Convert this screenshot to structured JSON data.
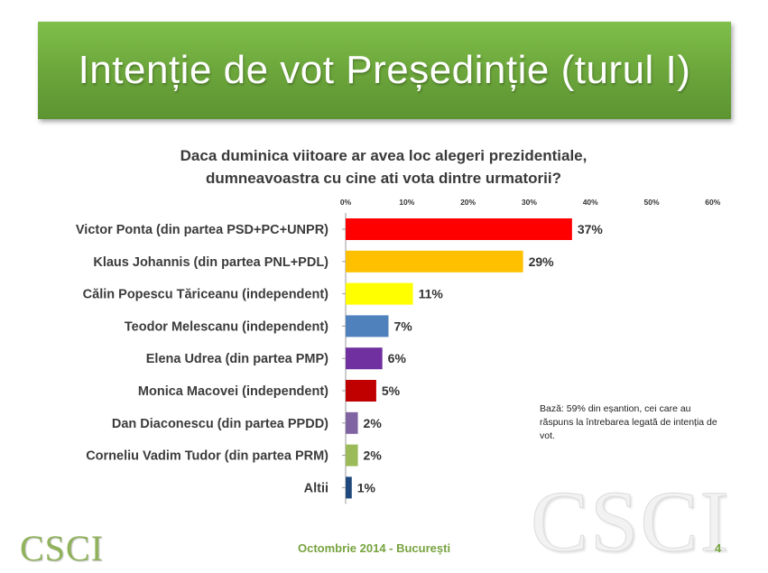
{
  "slide": {
    "title": "Intenție de vot Președinție (turul I)",
    "question_line1": "Daca duminica viitoare ar avea loc alegeri prezidentiale,",
    "question_line2": "dumneavoastra cu cine ati vota dintre urmatorii?",
    "note": "Bază: 59% din eșantion, cei care au răspuns la întrebarea legată de intenția de vot.",
    "watermark": "CSCI",
    "logo": "CSCI",
    "footer": "Octombrie 2014 - București",
    "page_number": "4"
  },
  "chart_data": {
    "type": "bar",
    "orientation": "horizontal",
    "title": "Daca duminica viitoare ar avea loc alegeri prezidentiale, dumneavoastra cu cine ati vota dintre urmatorii?",
    "xlabel": "",
    "ylabel": "",
    "xlim": [
      0,
      60
    ],
    "ticks": [
      0,
      10,
      20,
      30,
      40,
      50,
      60
    ],
    "tick_labels": [
      "0%",
      "10%",
      "20%",
      "30%",
      "40%",
      "50%",
      "60%"
    ],
    "grid": false,
    "categories": [
      "Victor Ponta (din partea PSD+PC+UNPR)",
      "Klaus Johannis (din partea PNL+PDL)",
      "Călin Popescu Tăriceanu (independent)",
      "Teodor Melescanu (independent)",
      "Elena Udrea (din partea PMP)",
      "Monica Macovei (independent)",
      "Dan Diaconescu (din partea PPDD)",
      "Corneliu Vadim Tudor (din partea PRM)",
      "Altii"
    ],
    "values": [
      37,
      29,
      11,
      7,
      6,
      5,
      2,
      2,
      1
    ],
    "value_labels": [
      "37%",
      "29%",
      "11%",
      "7%",
      "6%",
      "5%",
      "2%",
      "2%",
      "1%"
    ],
    "colors": [
      "#ff0000",
      "#ffc000",
      "#ffff00",
      "#4f81bd",
      "#7030a0",
      "#c00000",
      "#8064a2",
      "#9bbb59",
      "#1f497d"
    ]
  }
}
